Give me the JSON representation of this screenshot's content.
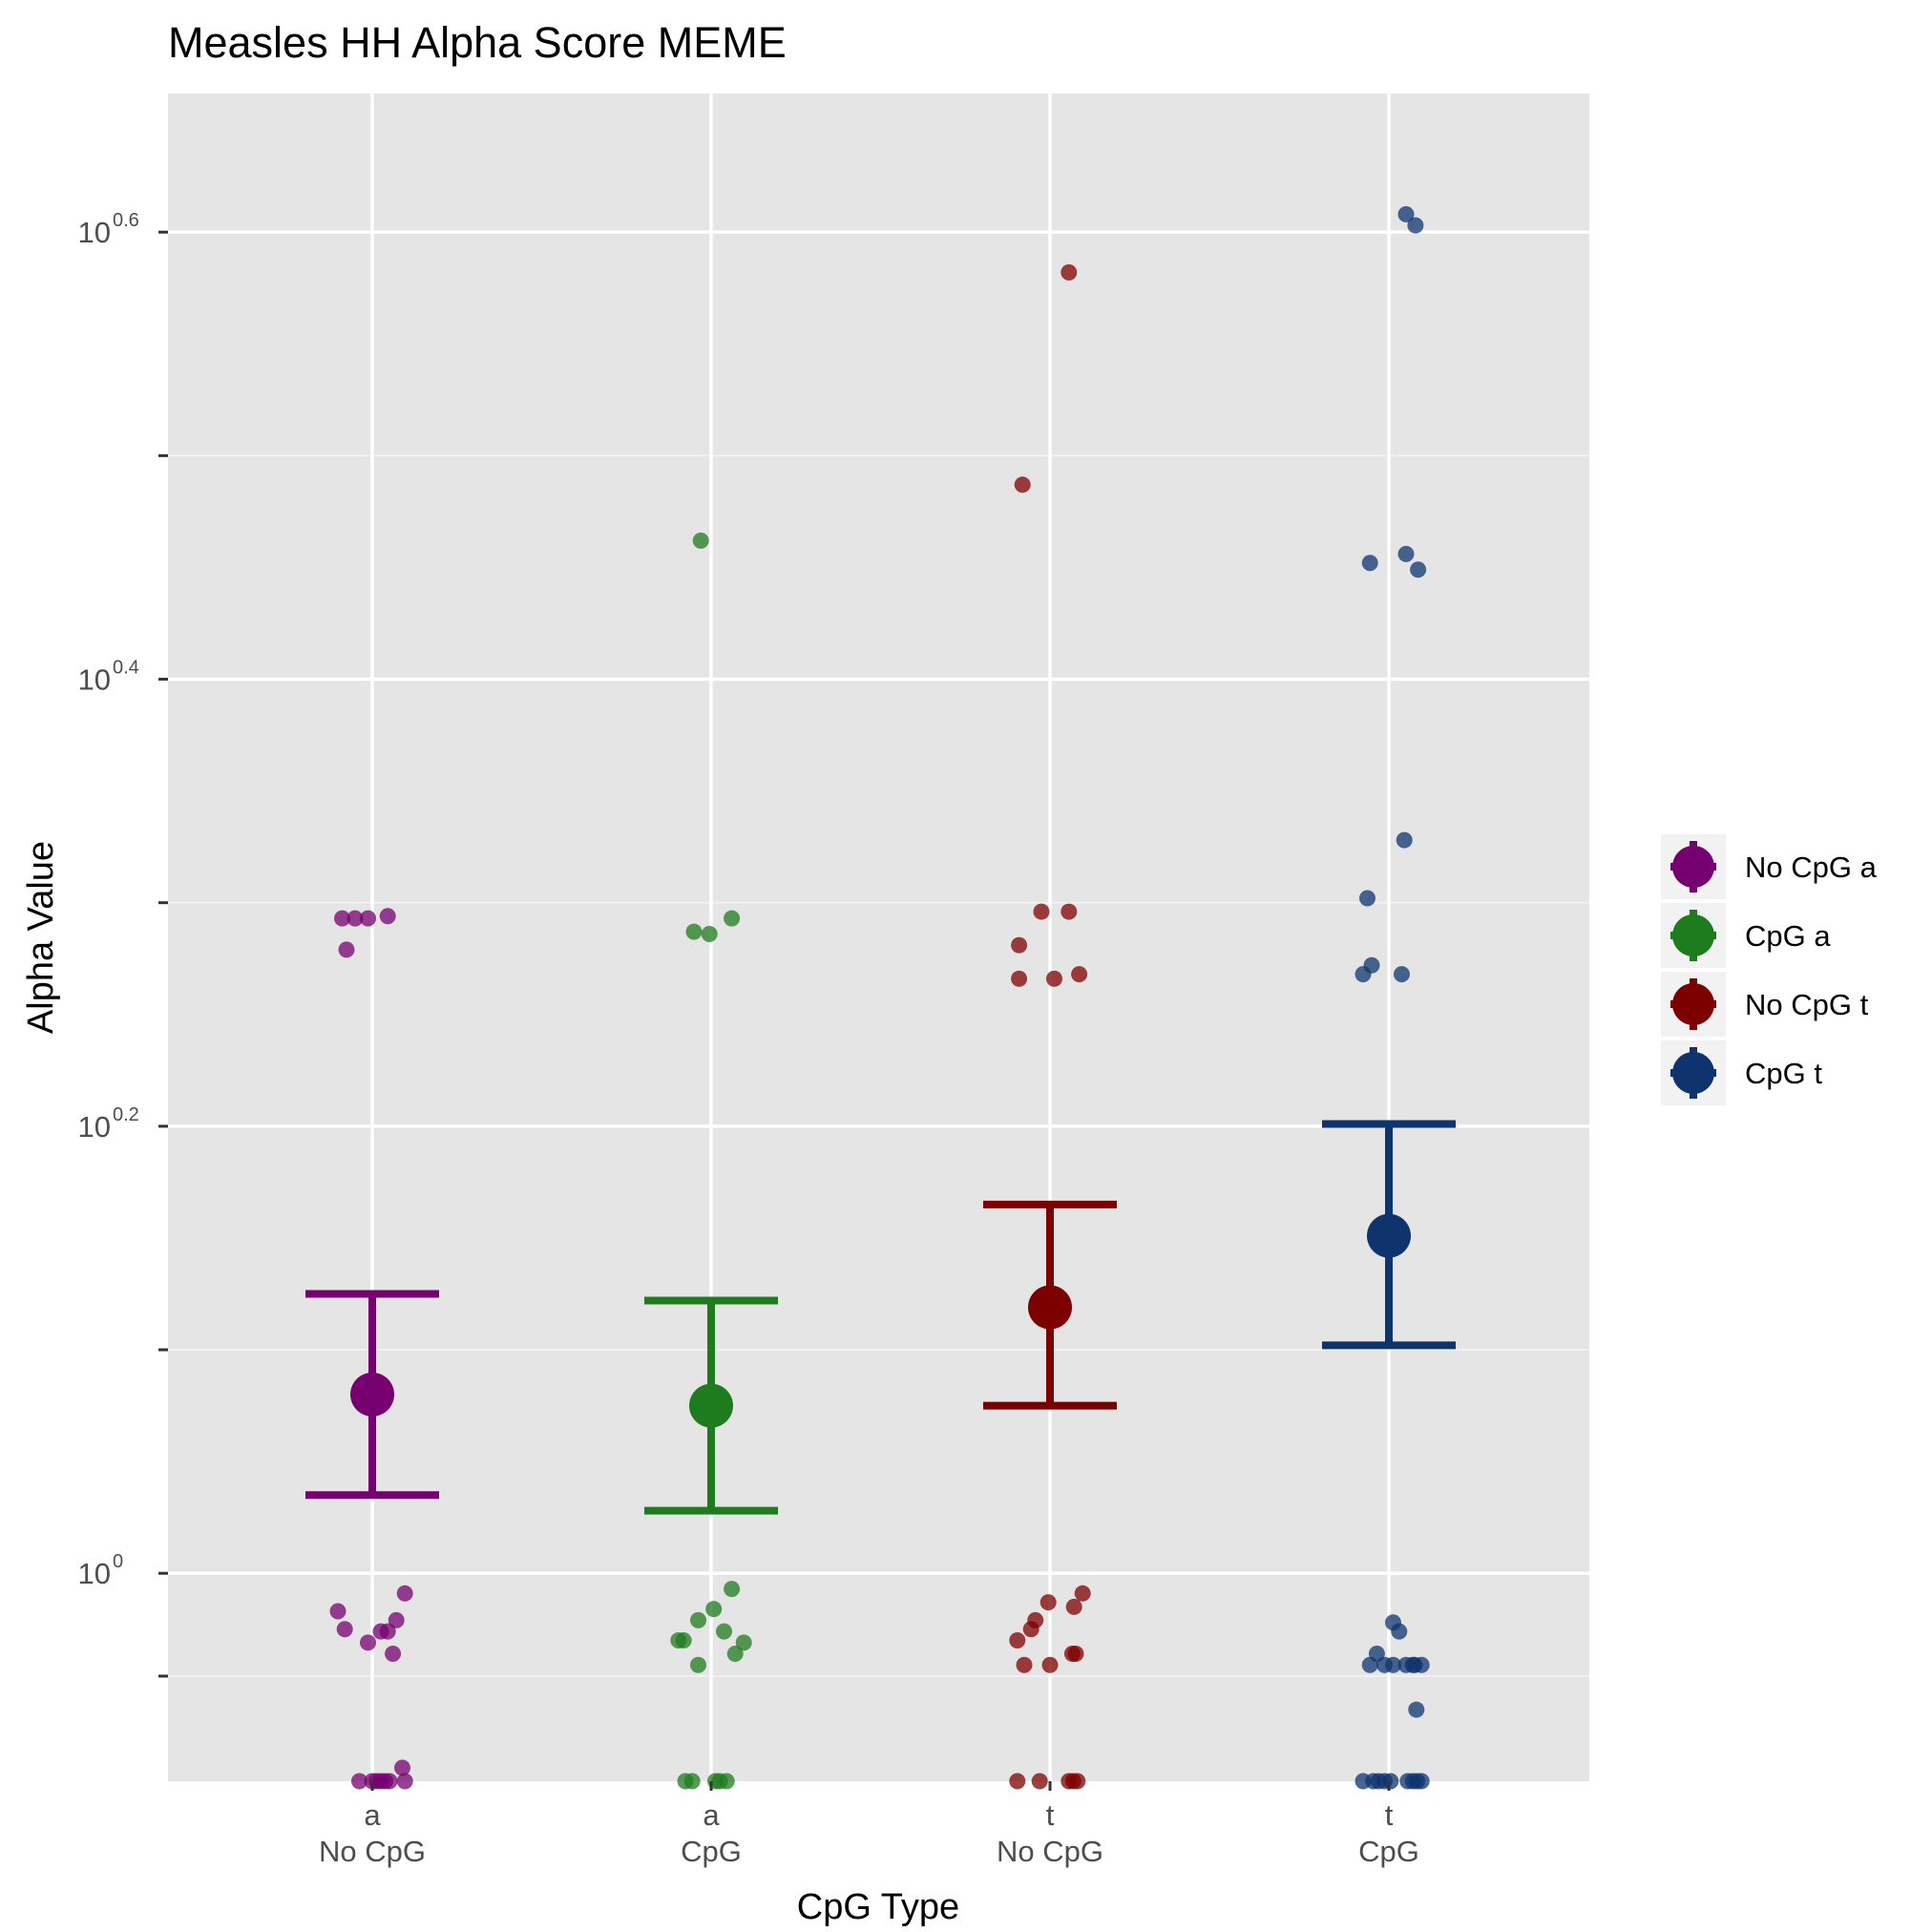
{
  "chart_data": {
    "type": "scatter",
    "title": "Measles HH Alpha Score MEME",
    "xlabel": "CpG Type",
    "ylabel": "Alpha Value",
    "y_scale": "log10",
    "ylim_log10": [
      -0.093,
      0.662
    ],
    "y_ticks": [
      {
        "log10": 0,
        "base": "10",
        "exp": "0"
      },
      {
        "log10": 0.2,
        "base": "10",
        "exp": "0.2"
      },
      {
        "log10": 0.4,
        "base": "10",
        "exp": "0.4"
      },
      {
        "log10": 0.6,
        "base": "10",
        "exp": "0.6"
      }
    ],
    "y_minor_ticks_log10": [
      -0.046,
      0.1,
      0.3,
      0.5
    ],
    "grid": true,
    "legend_position": "right",
    "categories": [
      {
        "line1": "a",
        "line2": "No CpG"
      },
      {
        "line1": "a",
        "line2": "CpG"
      },
      {
        "line1": "t",
        "line2": "No CpG"
      },
      {
        "line1": "t",
        "line2": "CpG"
      }
    ],
    "series": [
      {
        "name": "No CpG a",
        "color": "#760070",
        "mean_log10": 0.08,
        "error_log10": [
          0.035,
          0.125
        ],
        "points": [
          [
            -0.35,
            0.293
          ],
          [
            -0.2,
            0.293
          ],
          [
            -0.05,
            0.293
          ],
          [
            -0.3,
            0.279
          ],
          [
            0.18,
            0.294
          ],
          [
            -0.4,
            -0.017
          ],
          [
            -0.32,
            -0.025
          ],
          [
            -0.05,
            -0.031
          ],
          [
            0.1,
            -0.026
          ],
          [
            0.18,
            -0.026
          ],
          [
            0.28,
            -0.021
          ],
          [
            0.38,
            -0.009
          ],
          [
            0.35,
            -0.087
          ],
          [
            0.24,
            -0.036
          ],
          [
            -0.15,
            -0.093
          ],
          [
            0.0,
            -0.093
          ],
          [
            0.05,
            -0.093
          ],
          [
            0.1,
            -0.093
          ],
          [
            0.15,
            -0.093
          ],
          [
            0.2,
            -0.093
          ],
          [
            0.38,
            -0.093
          ]
        ]
      },
      {
        "name": "CpG a",
        "color": "#1e7b1e",
        "mean_log10": 0.075,
        "error_log10": [
          0.028,
          0.122
        ],
        "points": [
          [
            -0.12,
            0.462
          ],
          [
            -0.2,
            0.287
          ],
          [
            -0.02,
            0.286
          ],
          [
            0.24,
            0.293
          ],
          [
            -0.38,
            -0.03
          ],
          [
            -0.32,
            -0.03
          ],
          [
            -0.15,
            -0.041
          ],
          [
            -0.15,
            -0.021
          ],
          [
            0.03,
            -0.016
          ],
          [
            0.15,
            -0.026
          ],
          [
            0.24,
            -0.007
          ],
          [
            0.28,
            -0.036
          ],
          [
            0.38,
            -0.031
          ],
          [
            -0.3,
            -0.093
          ],
          [
            -0.22,
            -0.093
          ],
          [
            0.05,
            -0.093
          ],
          [
            0.1,
            -0.093
          ],
          [
            0.18,
            -0.093
          ]
        ]
      },
      {
        "name": "No CpG t",
        "color": "#7d0000",
        "mean_log10": 0.119,
        "error_log10": [
          0.075,
          0.165
        ],
        "points": [
          [
            0.22,
            0.582
          ],
          [
            -0.32,
            0.487
          ],
          [
            -0.1,
            0.296
          ],
          [
            0.22,
            0.296
          ],
          [
            -0.36,
            0.281
          ],
          [
            -0.36,
            0.266
          ],
          [
            0.05,
            0.266
          ],
          [
            0.34,
            0.268
          ],
          [
            -0.38,
            -0.03
          ],
          [
            -0.3,
            -0.041
          ],
          [
            -0.22,
            -0.025
          ],
          [
            -0.17,
            -0.021
          ],
          [
            -0.02,
            -0.013
          ],
          [
            0.0,
            -0.041
          ],
          [
            0.26,
            -0.036
          ],
          [
            0.28,
            -0.015
          ],
          [
            0.3,
            -0.036
          ],
          [
            0.38,
            -0.009
          ],
          [
            -0.38,
            -0.093
          ],
          [
            -0.12,
            -0.093
          ],
          [
            0.22,
            -0.093
          ],
          [
            0.27,
            -0.093
          ],
          [
            0.32,
            -0.093
          ]
        ]
      },
      {
        "name": "CpG t",
        "color": "#0e336d",
        "mean_log10": 0.151,
        "error_log10": [
          0.102,
          0.201
        ],
        "points": [
          [
            0.2,
            0.608
          ],
          [
            0.31,
            0.603
          ],
          [
            -0.22,
            0.452
          ],
          [
            0.2,
            0.456
          ],
          [
            0.34,
            0.449
          ],
          [
            0.18,
            0.328
          ],
          [
            -0.25,
            0.302
          ],
          [
            -0.2,
            0.272
          ],
          [
            -0.3,
            0.268
          ],
          [
            0.15,
            0.268
          ],
          [
            0.05,
            -0.022
          ],
          [
            0.12,
            -0.026
          ],
          [
            -0.14,
            -0.036
          ],
          [
            -0.05,
            -0.041
          ],
          [
            0.05,
            -0.041
          ],
          [
            0.2,
            -0.041
          ],
          [
            -0.22,
            -0.041
          ],
          [
            0.3,
            -0.041
          ],
          [
            0.38,
            -0.041
          ],
          [
            0.28,
            -0.041
          ],
          [
            0.32,
            -0.061
          ],
          [
            -0.3,
            -0.093
          ],
          [
            -0.18,
            -0.093
          ],
          [
            -0.12,
            -0.093
          ],
          [
            -0.05,
            -0.093
          ],
          [
            0.02,
            -0.093
          ],
          [
            0.22,
            -0.093
          ],
          [
            0.28,
            -0.093
          ],
          [
            0.33,
            -0.093
          ],
          [
            0.38,
            -0.093
          ]
        ]
      }
    ]
  }
}
